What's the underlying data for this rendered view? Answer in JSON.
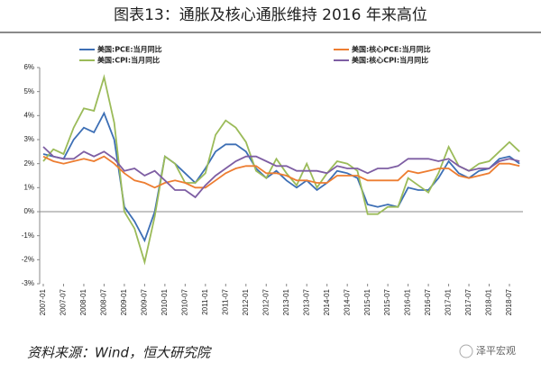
{
  "chart_data": {
    "type": "line",
    "title": "图表13：通胀及核心通胀维持 2016 年来高位",
    "source": "资料来源：Wind，恒大研究院",
    "watermark": "泽平宏观",
    "categories": [
      "2007-01",
      null,
      "2007-07",
      null,
      "2008-01",
      null,
      "2008-07",
      null,
      "2009-01",
      null,
      "2009-07",
      null,
      "2010-01",
      null,
      "2010-07",
      null,
      "2011-01",
      null,
      "2011-07",
      null,
      "2012-01",
      null,
      "2012-07",
      null,
      "2013-01",
      null,
      "2013-07",
      null,
      "2014-01",
      null,
      "2014-07",
      null,
      "2015-01",
      null,
      "2015-07",
      null,
      "2016-01",
      null,
      "2016-07",
      null,
      "2017-01",
      null,
      "2017-07",
      null,
      "2018-01",
      null,
      "2018-07",
      null
    ],
    "series": [
      {
        "name": "美国:PCE:当月同比",
        "color": "#3d6fb5",
        "values": [
          2.4,
          2.3,
          2.2,
          3.0,
          3.5,
          3.3,
          4.1,
          3.0,
          0.2,
          -0.4,
          -1.2,
          0.0,
          2.3,
          2.0,
          1.6,
          1.2,
          1.8,
          2.5,
          2.8,
          2.8,
          2.5,
          1.8,
          1.4,
          1.7,
          1.3,
          1.0,
          1.3,
          0.9,
          1.2,
          1.7,
          1.6,
          1.4,
          0.3,
          0.2,
          0.3,
          0.2,
          1.0,
          0.9,
          0.9,
          1.4,
          2.1,
          1.6,
          1.4,
          1.7,
          1.8,
          2.2,
          2.3,
          2.0
        ]
      },
      {
        "name": "美国:CPI:当月同比",
        "color": "#9bbb59",
        "values": [
          2.1,
          2.6,
          2.4,
          3.5,
          4.3,
          4.2,
          5.6,
          3.7,
          0.0,
          -0.7,
          -2.1,
          -0.2,
          2.3,
          2.0,
          1.2,
          1.2,
          1.6,
          3.2,
          3.8,
          3.5,
          2.9,
          1.7,
          1.4,
          2.2,
          1.6,
          1.1,
          2.0,
          1.0,
          1.6,
          2.1,
          2.0,
          1.7,
          -0.1,
          -0.1,
          0.2,
          0.2,
          1.4,
          1.1,
          0.8,
          1.6,
          2.7,
          1.9,
          1.7,
          2.0,
          2.1,
          2.5,
          2.9,
          2.5
        ]
      },
      {
        "name": "美国:核心PCE:当月同比",
        "color": "#ed7d31",
        "values": [
          2.3,
          2.1,
          2.0,
          2.1,
          2.2,
          2.1,
          2.3,
          2.0,
          1.6,
          1.3,
          1.2,
          1.0,
          1.2,
          1.3,
          1.2,
          1.0,
          1.0,
          1.3,
          1.6,
          1.8,
          1.9,
          1.9,
          1.6,
          1.6,
          1.5,
          1.3,
          1.3,
          1.2,
          1.2,
          1.5,
          1.5,
          1.5,
          1.3,
          1.3,
          1.3,
          1.3,
          1.7,
          1.6,
          1.7,
          1.8,
          1.8,
          1.5,
          1.4,
          1.5,
          1.6,
          2.0,
          2.0,
          1.9
        ]
      },
      {
        "name": "美国:核心CPI:当月同比",
        "color": "#7e5ea3",
        "values": [
          2.7,
          2.3,
          2.2,
          2.2,
          2.5,
          2.3,
          2.5,
          2.2,
          1.7,
          1.8,
          1.5,
          1.7,
          1.3,
          0.9,
          0.9,
          0.6,
          1.1,
          1.5,
          1.8,
          2.1,
          2.3,
          2.3,
          2.1,
          1.9,
          1.9,
          1.7,
          1.7,
          1.7,
          1.6,
          1.9,
          1.8,
          1.8,
          1.6,
          1.8,
          1.8,
          1.9,
          2.2,
          2.2,
          2.2,
          2.1,
          2.2,
          1.9,
          1.7,
          1.8,
          1.8,
          2.1,
          2.2,
          2.1
        ]
      }
    ],
    "ylim": [
      -3,
      6
    ],
    "yticks": [
      {
        "value": -3,
        "label": "-3%"
      },
      {
        "value": -2,
        "label": "-2%"
      },
      {
        "value": -1,
        "label": "-1%"
      },
      {
        "value": 0,
        "label": "0%"
      },
      {
        "value": 1,
        "label": "1%"
      },
      {
        "value": 2,
        "label": "2%"
      },
      {
        "value": 3,
        "label": "3%"
      },
      {
        "value": 4,
        "label": "4%"
      },
      {
        "value": 5,
        "label": "5%"
      },
      {
        "value": 6,
        "label": "6%"
      }
    ],
    "grid": false
  }
}
